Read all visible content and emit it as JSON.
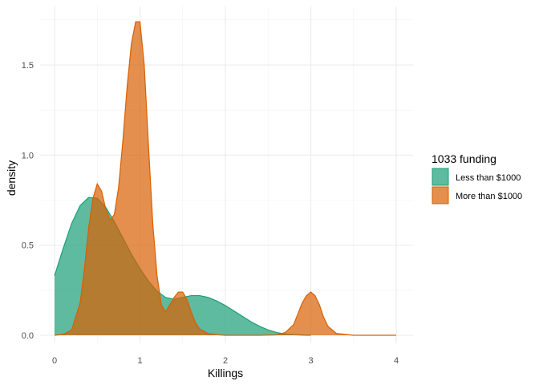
{
  "chart_data": {
    "type": "area",
    "title": "",
    "xlabel": "Killings",
    "ylabel": "density",
    "xlim": [
      0,
      4
    ],
    "ylim": [
      0,
      1.75
    ],
    "x_ticks": [
      0,
      1,
      2,
      3,
      4
    ],
    "x_tick_labels": [
      "0",
      "1",
      "2",
      "3",
      "4"
    ],
    "y_ticks": [
      0,
      0.5,
      1,
      1.5
    ],
    "y_tick_labels": [
      "0.0",
      "0.5",
      "1.0",
      "1.5"
    ],
    "grid": true,
    "legend": {
      "title": "1033 funding",
      "position": "right"
    },
    "series": [
      {
        "name": "Less than $1000",
        "fill": "#1b9e77",
        "stroke": "#1b9e77",
        "x": [
          0,
          0.1,
          0.2,
          0.3,
          0.4,
          0.5,
          0.6,
          0.7,
          0.8,
          0.9,
          1.0,
          1.1,
          1.2,
          1.3,
          1.4,
          1.5,
          1.6,
          1.7,
          1.8,
          1.9,
          2.0,
          2.1,
          2.2,
          2.3,
          2.4,
          2.5,
          2.6,
          2.7,
          2.8,
          2.9,
          3.0
        ],
        "values": [
          0.33,
          0.48,
          0.62,
          0.72,
          0.765,
          0.76,
          0.71,
          0.63,
          0.54,
          0.45,
          0.37,
          0.3,
          0.245,
          0.21,
          0.2,
          0.21,
          0.22,
          0.22,
          0.21,
          0.19,
          0.165,
          0.135,
          0.105,
          0.075,
          0.05,
          0.03,
          0.015,
          0.007,
          0.003,
          0.001,
          0.0
        ]
      },
      {
        "name": "More than $1000",
        "fill": "#d95f02",
        "stroke": "#d95f02",
        "x": [
          0,
          0.1,
          0.2,
          0.3,
          0.35,
          0.4,
          0.45,
          0.5,
          0.55,
          0.6,
          0.65,
          0.7,
          0.75,
          0.8,
          0.85,
          0.9,
          0.95,
          1.0,
          1.05,
          1.1,
          1.15,
          1.2,
          1.25,
          1.3,
          1.35,
          1.4,
          1.45,
          1.5,
          1.55,
          1.6,
          1.65,
          1.7,
          1.8,
          1.9,
          2.0,
          2.2,
          2.4,
          2.6,
          2.7,
          2.8,
          2.85,
          2.9,
          2.95,
          3.0,
          3.05,
          3.1,
          3.15,
          3.2,
          3.3,
          3.5,
          4.0
        ],
        "values": [
          0.0,
          0.005,
          0.03,
          0.18,
          0.37,
          0.6,
          0.76,
          0.84,
          0.8,
          0.7,
          0.64,
          0.67,
          0.82,
          1.08,
          1.38,
          1.62,
          1.74,
          1.74,
          1.5,
          1.05,
          0.62,
          0.33,
          0.17,
          0.13,
          0.17,
          0.21,
          0.24,
          0.24,
          0.2,
          0.13,
          0.07,
          0.035,
          0.01,
          0.003,
          0.0,
          0.0,
          0.0,
          0.002,
          0.015,
          0.06,
          0.12,
          0.18,
          0.22,
          0.24,
          0.22,
          0.17,
          0.1,
          0.05,
          0.01,
          0.0,
          0.0
        ]
      }
    ]
  }
}
